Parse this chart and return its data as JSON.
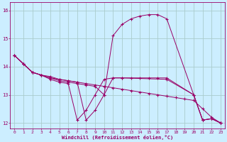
{
  "xlabel": "Windchill (Refroidissement éolien,°C)",
  "bg_color": "#cceeff",
  "grid_color": "#aacccc",
  "line_color": "#990066",
  "xlim": [
    -0.5,
    23.5
  ],
  "ylim": [
    11.8,
    16.3
  ],
  "yticks": [
    12,
    13,
    14,
    15,
    16
  ],
  "xticks": [
    0,
    1,
    2,
    3,
    4,
    5,
    6,
    7,
    8,
    9,
    10,
    11,
    12,
    13,
    14,
    15,
    16,
    17,
    18,
    19,
    20,
    21,
    22,
    23
  ],
  "lines": [
    {
      "x": [
        0,
        1,
        2,
        3,
        4,
        5,
        6,
        7,
        8,
        9,
        10,
        11,
        12,
        13,
        14,
        15,
        16,
        17,
        18,
        19,
        20,
        21,
        22,
        23
      ],
      "y": [
        14.4,
        14.1,
        13.8,
        13.7,
        13.65,
        13.55,
        13.5,
        13.45,
        13.4,
        13.35,
        13.3,
        13.25,
        13.2,
        13.15,
        13.1,
        13.05,
        13.0,
        12.95,
        12.9,
        12.85,
        12.8,
        12.5,
        12.2,
        12.0
      ]
    },
    {
      "x": [
        0,
        1,
        2,
        3,
        4,
        5,
        6,
        7,
        8,
        9,
        10,
        11,
        12,
        13,
        14,
        15,
        16,
        17,
        20,
        21,
        22,
        23
      ],
      "y": [
        14.4,
        14.1,
        13.8,
        13.7,
        13.6,
        13.5,
        13.45,
        13.4,
        13.35,
        13.3,
        13.0,
        15.1,
        15.5,
        15.7,
        15.8,
        15.85,
        15.85,
        15.7,
        13.0,
        12.1,
        12.15,
        12.0
      ]
    },
    {
      "x": [
        0,
        1,
        2,
        3,
        4,
        5,
        6,
        7,
        8,
        9,
        10,
        11,
        12,
        17,
        20,
        21,
        22,
        23
      ],
      "y": [
        14.4,
        14.1,
        13.8,
        13.7,
        13.55,
        13.45,
        13.4,
        12.1,
        12.45,
        13.0,
        13.55,
        13.6,
        13.6,
        13.55,
        13.0,
        12.1,
        12.15,
        12.0
      ]
    },
    {
      "x": [
        0,
        1,
        2,
        3,
        4,
        5,
        6,
        7,
        8,
        9,
        10,
        11,
        12,
        13,
        14,
        15,
        16,
        17,
        20,
        21,
        22,
        23
      ],
      "y": [
        14.4,
        14.1,
        13.8,
        13.7,
        13.6,
        13.55,
        13.5,
        13.45,
        12.1,
        12.45,
        13.0,
        13.6,
        13.6,
        13.6,
        13.6,
        13.6,
        13.6,
        13.6,
        13.0,
        12.1,
        12.15,
        12.0
      ]
    }
  ]
}
